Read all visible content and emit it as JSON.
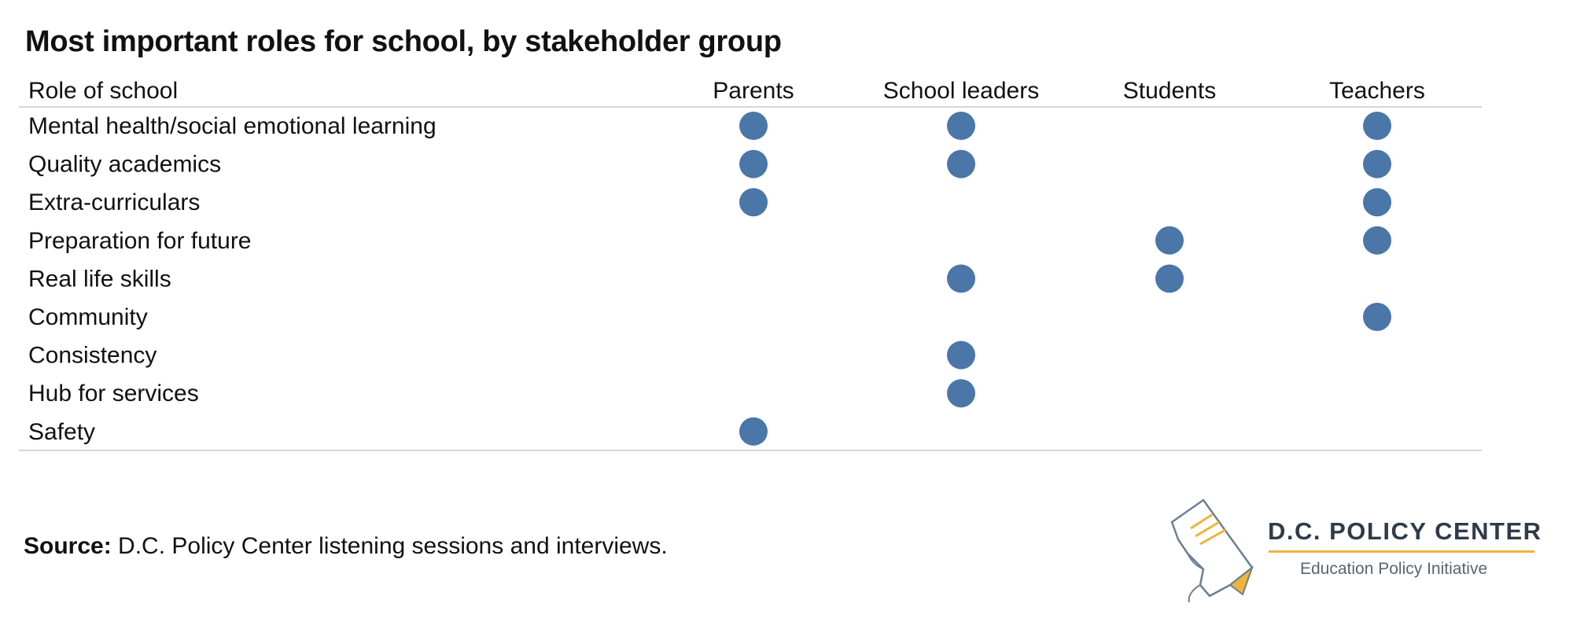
{
  "chart_data": {
    "type": "table",
    "title": "Most important roles for school, by stakeholder group",
    "row_header": "Role of school",
    "columns": [
      "Parents",
      "School leaders",
      "Students",
      "Teachers"
    ],
    "rows": [
      {
        "role": "Mental health/social emotional learning",
        "marks": [
          true,
          true,
          false,
          true
        ]
      },
      {
        "role": "Quality academics",
        "marks": [
          true,
          true,
          false,
          true
        ]
      },
      {
        "role": "Extra-curriculars",
        "marks": [
          true,
          false,
          false,
          true
        ]
      },
      {
        "role": "Preparation for future",
        "marks": [
          false,
          false,
          true,
          true
        ]
      },
      {
        "role": "Real life skills",
        "marks": [
          false,
          true,
          true,
          false
        ]
      },
      {
        "role": "Community",
        "marks": [
          false,
          false,
          false,
          true
        ]
      },
      {
        "role": "Consistency",
        "marks": [
          false,
          true,
          false,
          false
        ]
      },
      {
        "role": "Hub for services",
        "marks": [
          false,
          true,
          false,
          false
        ]
      },
      {
        "role": "Safety",
        "marks": [
          true,
          false,
          false,
          false
        ]
      }
    ],
    "marker_color": "#4a76a8",
    "rule_color": "#c8c8c8"
  },
  "source": {
    "label": "Source:",
    "text": "D.C. Policy Center listening sessions and interviews."
  },
  "logo": {
    "name": "D.C. POLICY CENTER",
    "subtitle": "Education Policy Initiative",
    "accent_color": "#f0b43a"
  }
}
